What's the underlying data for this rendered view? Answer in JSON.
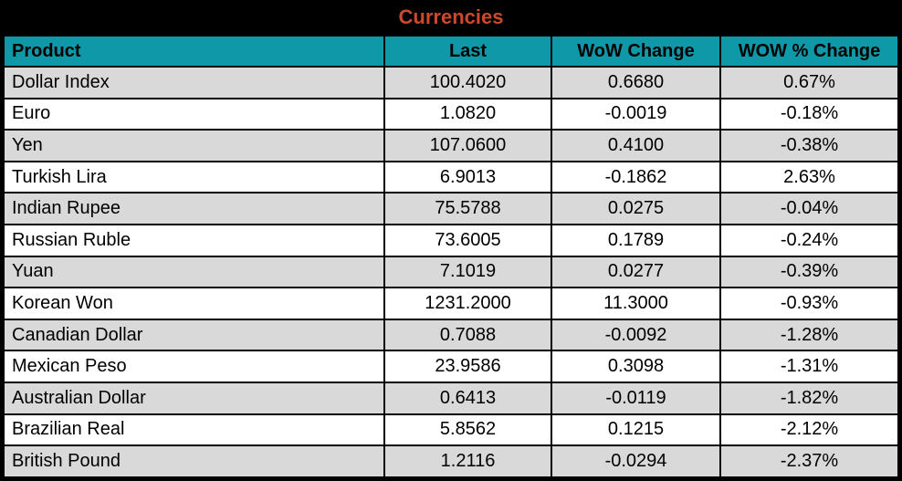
{
  "colors": {
    "title_bg": "#000000",
    "title_text": "#cb4a2b",
    "header_bg": "#0e98a8",
    "header_text": "#000000",
    "row_bg": "#ffffff",
    "row_alt_bg": "#d9d9d9",
    "border": "#000000",
    "cell_text": "#000000"
  },
  "chart_data": {
    "type": "table",
    "title": "Currencies",
    "columns": [
      {
        "key": "product",
        "label": "Product",
        "align": "left"
      },
      {
        "key": "last",
        "label": "Last",
        "align": "center"
      },
      {
        "key": "wow_change",
        "label": "WoW Change",
        "align": "center"
      },
      {
        "key": "wow_pct_change",
        "label": "WOW % Change",
        "align": "center"
      }
    ],
    "rows": [
      [
        "Dollar Index",
        "100.4020",
        "0.6680",
        "0.67%"
      ],
      [
        "Euro",
        "1.0820",
        "-0.0019",
        "-0.18%"
      ],
      [
        "Yen",
        "107.0600",
        "0.4100",
        "-0.38%"
      ],
      [
        "Turkish Lira",
        "6.9013",
        "-0.1862",
        "2.63%"
      ],
      [
        "Indian Rupee",
        "75.5788",
        "0.0275",
        "-0.04%"
      ],
      [
        "Russian Ruble",
        "73.6005",
        "0.1789",
        "-0.24%"
      ],
      [
        "Yuan",
        "7.1019",
        "0.0277",
        "-0.39%"
      ],
      [
        "Korean Won",
        "1231.2000",
        "11.3000",
        "-0.93%"
      ],
      [
        "Canadian Dollar",
        "0.7088",
        "-0.0092",
        "-1.28%"
      ],
      [
        "Mexican Peso",
        "23.9586",
        "0.3098",
        "-1.31%"
      ],
      [
        "Australian Dollar",
        "0.6413",
        "-0.0119",
        "-1.82%"
      ],
      [
        "Brazilian Real",
        "5.8562",
        "0.1215",
        "-2.12%"
      ],
      [
        "British Pound",
        "1.2116",
        "-0.0294",
        "-2.37%"
      ]
    ]
  }
}
